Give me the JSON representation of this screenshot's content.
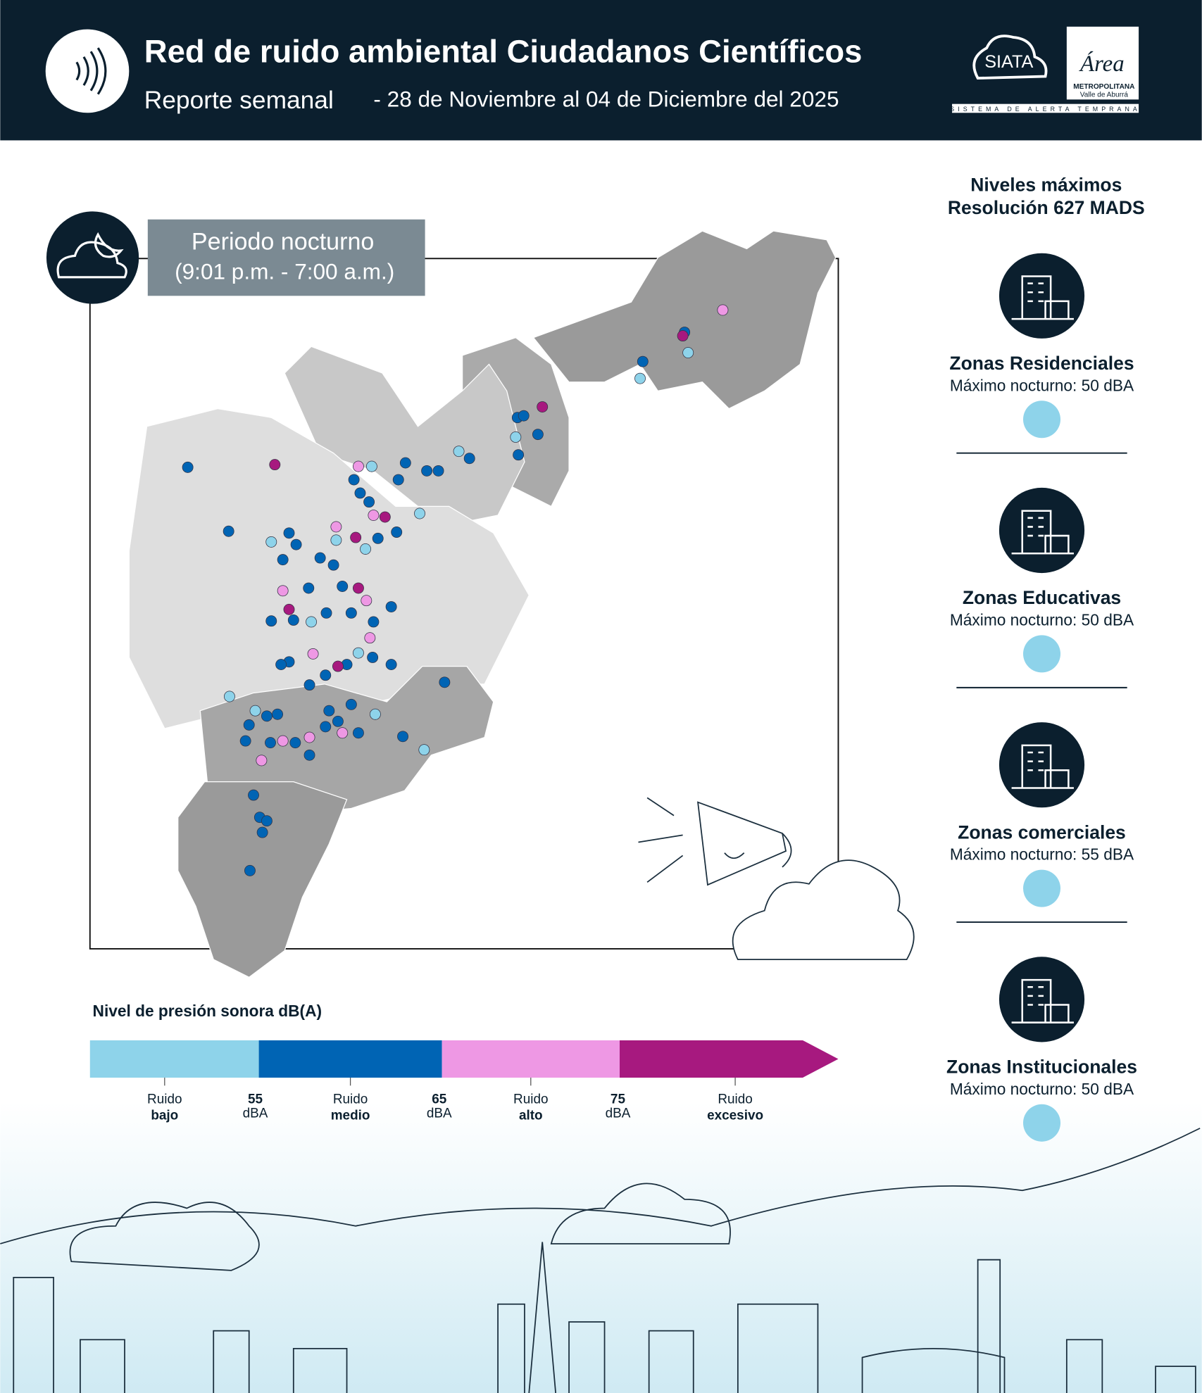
{
  "header": {
    "title": "Red de ruido ambiental Ciudadanos Científicos",
    "subtitle": "Reporte semanal",
    "dates": "- 28 de Noviembre al 04 de Diciembre del 2025",
    "logo_siata": "SIATA",
    "logo_area": "Área",
    "logo_metro": "METROPOLITANA",
    "logo_valle": "Valle de Aburrá",
    "logo_bar": "SISTEMA DE ALERTA TEMPRANA"
  },
  "period": {
    "label": "Periodo nocturno",
    "hours": "(9:01 p.m. - 7:00 a.m.)"
  },
  "legend": {
    "title": "Nivel de presión sonora dB(A)",
    "segments": [
      {
        "name": "Ruido",
        "level": "bajo",
        "color": "#8ed3ea"
      },
      {
        "name": "Ruido",
        "level": "medio",
        "color": "#0064b4"
      },
      {
        "name": "Ruido",
        "level": "alto",
        "color": "#ee98e4"
      },
      {
        "name": "Ruido",
        "level": "excesivo",
        "color": "#a7197f"
      }
    ],
    "thresholds": [
      {
        "value": 55,
        "unit": "dBA"
      },
      {
        "value": 65,
        "unit": "dBA"
      },
      {
        "value": 75,
        "unit": "dBA"
      }
    ]
  },
  "limits": {
    "title": "Niveles máximos",
    "subtitle": "Resolución 627 MADS",
    "zones": [
      {
        "name": "Zonas Residenciales",
        "max": "Máximo nocturno: 50 dBA",
        "color": "#8ed3ea"
      },
      {
        "name": "Zonas Educativas",
        "max": "Máximo nocturno: 50 dBA",
        "color": "#8ed3ea"
      },
      {
        "name": "Zonas comerciales",
        "max": "Máximo nocturno: 55 dBA",
        "color": "#8ed3ea"
      },
      {
        "name": "Zonas Institucionales",
        "max": "Máximo nocturno: 50 dBA",
        "color": "#8ed3ea"
      }
    ]
  }
}
